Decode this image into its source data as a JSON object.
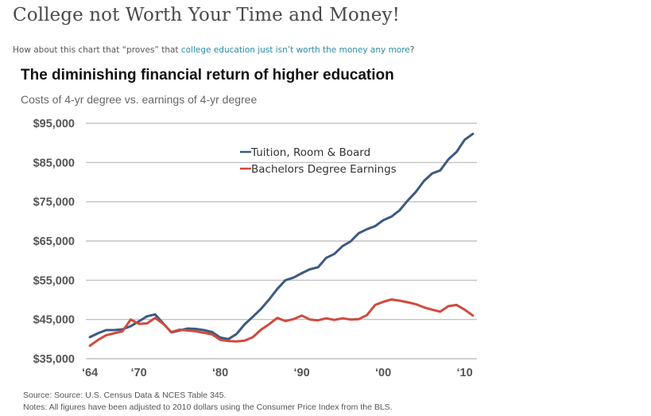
{
  "post": {
    "title": "College not Worth Your Time and Money!",
    "intro_before": "How about this chart that “proves” that ",
    "intro_link": "college education just isn’t worth the money any more",
    "intro_after": "?"
  },
  "chart_data": {
    "type": "line",
    "title": "The diminishing financial return of higher education",
    "subtitle": "Costs of 4-yr degree vs. earnings of 4-yr degree",
    "xlabel": "",
    "ylabel": "",
    "x_ticks": [
      {
        "value": 1964,
        "label": "‘64"
      },
      {
        "value": 1970,
        "label": "‘70"
      },
      {
        "value": 1980,
        "label": "‘80"
      },
      {
        "value": 1990,
        "label": "‘90"
      },
      {
        "value": 2000,
        "label": "‘00"
      },
      {
        "value": 2010,
        "label": "‘10"
      }
    ],
    "xlim": [
      1963.5,
      2011.5
    ],
    "y_ticks": [
      {
        "value": 35000,
        "label": "$35,000"
      },
      {
        "value": 45000,
        "label": "$45,000"
      },
      {
        "value": 55000,
        "label": "$55,000"
      },
      {
        "value": 65000,
        "label": "$65,000"
      },
      {
        "value": 75000,
        "label": "$75,000"
      },
      {
        "value": 85000,
        "label": "$85,000"
      },
      {
        "value": 95000,
        "label": "$95,000"
      }
    ],
    "ylim": [
      35000,
      95000
    ],
    "grid": true,
    "legend_position": "top-center",
    "series": [
      {
        "name": "Tuition, Room & Board",
        "color": "#3d5a80",
        "x": [
          1964,
          1965,
          1966,
          1967,
          1968,
          1969,
          1970,
          1971,
          1972,
          1973,
          1974,
          1975,
          1976,
          1977,
          1978,
          1979,
          1980,
          1981,
          1982,
          1983,
          1984,
          1985,
          1986,
          1987,
          1988,
          1989,
          1990,
          1991,
          1992,
          1993,
          1994,
          1995,
          1996,
          1997,
          1998,
          1999,
          2000,
          2001,
          2002,
          2003,
          2004,
          2005,
          2006,
          2007,
          2008,
          2009,
          2010,
          2011
        ],
        "values": [
          40500,
          41500,
          42300,
          42300,
          42500,
          43300,
          44500,
          45800,
          46300,
          44000,
          41700,
          42200,
          42700,
          42600,
          42300,
          41800,
          40400,
          40000,
          41300,
          43800,
          45700,
          47700,
          50100,
          52800,
          55000,
          55700,
          56800,
          57800,
          58300,
          60700,
          61700,
          63700,
          64900,
          67000,
          68000,
          68800,
          70300,
          71200,
          72800,
          75300,
          77500,
          80300,
          82200,
          83000,
          85800,
          87700,
          90800,
          92300
        ]
      },
      {
        "name": "Bachelors Degree Earnings",
        "color": "#d04a3e",
        "x": [
          1964,
          1965,
          1966,
          1967,
          1968,
          1969,
          1970,
          1971,
          1972,
          1973,
          1974,
          1975,
          1976,
          1977,
          1978,
          1979,
          1980,
          1981,
          1982,
          1983,
          1984,
          1985,
          1986,
          1987,
          1988,
          1989,
          1990,
          1991,
          1992,
          1993,
          1994,
          1995,
          1996,
          1997,
          1998,
          1999,
          2000,
          2001,
          2002,
          2003,
          2004,
          2005,
          2006,
          2007,
          2008,
          2009,
          2010,
          2011
        ],
        "values": [
          38300,
          39800,
          41000,
          41500,
          42000,
          45000,
          43900,
          44000,
          45400,
          43900,
          41800,
          42400,
          42200,
          42000,
          41600,
          41200,
          39800,
          39500,
          39400,
          39600,
          40500,
          42400,
          43800,
          45400,
          44600,
          45100,
          46000,
          45000,
          44800,
          45300,
          44900,
          45300,
          45000,
          45100,
          46100,
          48700,
          49500,
          50100,
          49800,
          49400,
          48900,
          48100,
          47500,
          47000,
          48400,
          48700,
          47500,
          46000
        ]
      }
    ],
    "source": "Source: Source: U.S. Census Data & NCES Table 345.",
    "notes": "Notes: All figures have been adjusted to 2010 dollars using the Consumer Price Index from the BLS."
  }
}
